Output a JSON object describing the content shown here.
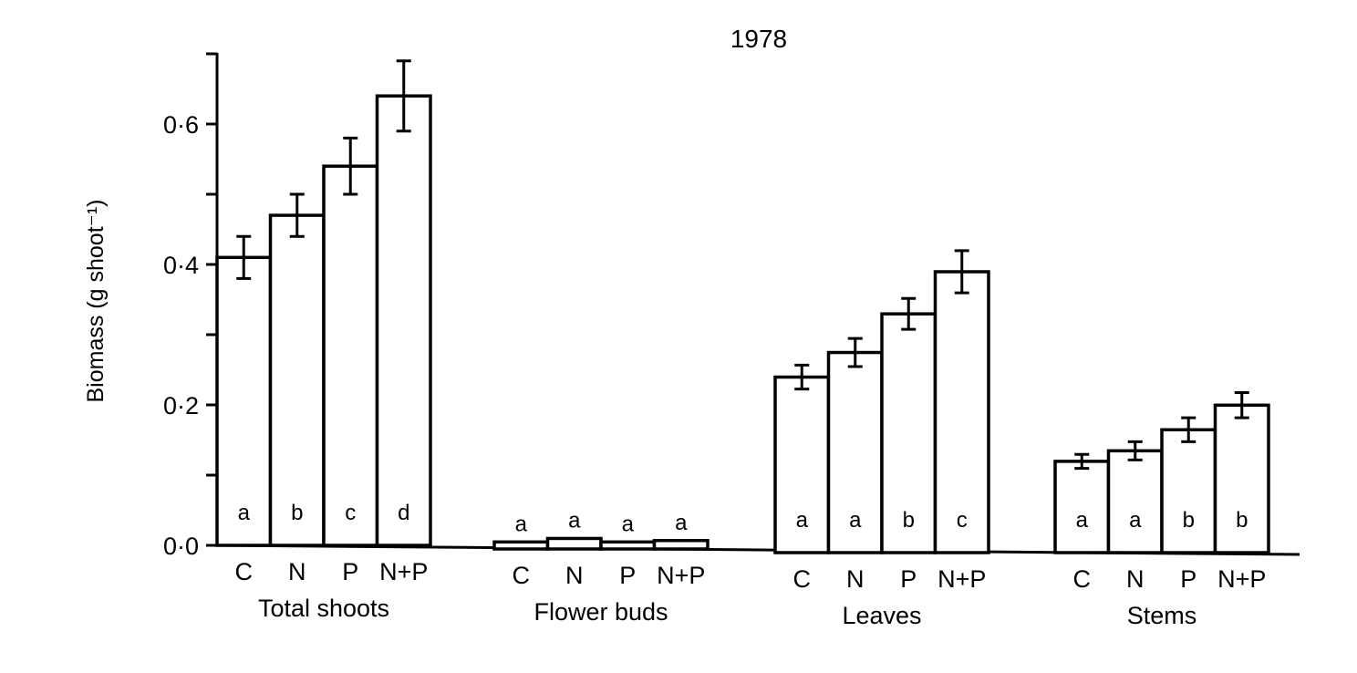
{
  "chart_data": {
    "type": "bar",
    "title": "1978",
    "ylabel": "Biomass (g shoot⁻¹)",
    "ylim": [
      0,
      0.7
    ],
    "yticks": [
      0.0,
      0.2,
      0.4,
      0.6
    ],
    "ytick_labels": [
      "0·0",
      "0·2",
      "0·4",
      "0·6"
    ],
    "categories": [
      "C",
      "N",
      "P",
      "N+P"
    ],
    "groups": [
      {
        "name": "Total shoots",
        "values": [
          0.41,
          0.47,
          0.54,
          0.64
        ],
        "errors": [
          0.03,
          0.03,
          0.04,
          0.05
        ],
        "letters": [
          "a",
          "b",
          "c",
          "d"
        ]
      },
      {
        "name": "Flower buds",
        "values": [
          0.01,
          0.015,
          0.01,
          0.012
        ],
        "errors": [
          0,
          0,
          0,
          0
        ],
        "letters": [
          "a",
          "a",
          "a",
          "a"
        ]
      },
      {
        "name": "Leaves",
        "values": [
          0.25,
          0.285,
          0.34,
          0.4
        ],
        "errors": [
          0.017,
          0.02,
          0.022,
          0.03
        ],
        "letters": [
          "a",
          "a",
          "b",
          "c"
        ]
      },
      {
        "name": "Stems",
        "values": [
          0.13,
          0.145,
          0.175,
          0.21
        ],
        "errors": [
          0.01,
          0.013,
          0.017,
          0.018
        ],
        "letters": [
          "a",
          "a",
          "b",
          "b"
        ]
      }
    ],
    "grid": false,
    "legend": "none"
  }
}
